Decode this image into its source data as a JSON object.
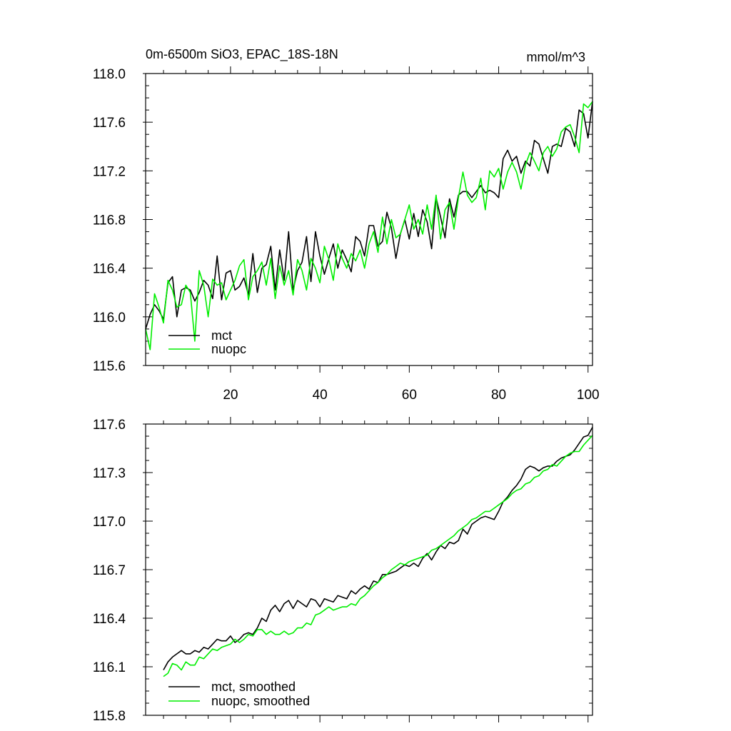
{
  "chart_data": [
    {
      "type": "line",
      "title": "0m-6500m SiO3, EPAC_18S-18N",
      "units": "mmol/m^3",
      "xlabel": "",
      "ylabel": "",
      "xlim": [
        1,
        101
      ],
      "ylim": [
        115.6,
        118.0
      ],
      "xticks": [
        20,
        40,
        60,
        80,
        100
      ],
      "xtick_labels": [
        "20",
        "40",
        "60",
        "80",
        "100"
      ],
      "yticks": [
        115.6,
        116.0,
        116.4,
        116.8,
        117.2,
        117.6,
        118.0
      ],
      "ytick_labels": [
        "115.6",
        "116.0",
        "116.4",
        "116.8",
        "117.2",
        "117.6",
        "118.0"
      ],
      "grid": false,
      "legend": "bottom-left",
      "series": [
        {
          "name": "mct",
          "color": "#000000",
          "x_start": 1,
          "values": [
            115.9,
            116.02,
            116.1,
            116.05,
            115.98,
            116.28,
            116.33,
            116.0,
            116.22,
            116.24,
            116.22,
            116.13,
            116.2,
            116.3,
            116.26,
            116.15,
            116.5,
            116.14,
            116.36,
            116.38,
            116.22,
            116.25,
            116.32,
            116.18,
            116.52,
            116.2,
            116.4,
            116.43,
            116.58,
            116.22,
            116.55,
            116.3,
            116.7,
            116.22,
            116.38,
            116.45,
            116.66,
            116.29,
            116.7,
            116.5,
            116.35,
            116.48,
            116.6,
            116.4,
            116.55,
            116.47,
            116.37,
            116.66,
            116.62,
            116.5,
            116.75,
            116.75,
            116.58,
            116.62,
            116.86,
            116.73,
            116.48,
            116.68,
            116.8,
            116.64,
            116.85,
            116.66,
            116.88,
            116.78,
            116.56,
            116.98,
            116.82,
            116.65,
            116.97,
            116.82,
            117.0,
            117.03,
            117.03,
            116.98,
            117.03,
            117.08,
            117.02,
            117.04,
            117.02,
            116.98,
            117.3,
            117.37,
            117.28,
            117.32,
            117.18,
            117.28,
            117.24,
            117.45,
            117.42,
            117.3,
            117.18,
            117.4,
            117.42,
            117.4,
            117.55,
            117.52,
            117.4,
            117.7,
            117.67,
            117.47,
            117.77
          ]
        },
        {
          "name": "nuopc",
          "color": "#00ee00",
          "x_start": 1,
          "values": [
            115.9,
            115.73,
            116.19,
            116.08,
            115.95,
            116.3,
            116.22,
            116.08,
            116.1,
            116.26,
            116.2,
            115.8,
            116.38,
            116.26,
            116.0,
            116.31,
            116.26,
            116.28,
            116.14,
            116.22,
            116.3,
            116.42,
            116.47,
            116.14,
            116.33,
            116.38,
            116.45,
            116.26,
            116.48,
            116.15,
            116.42,
            116.26,
            116.38,
            116.18,
            116.47,
            116.38,
            116.22,
            116.48,
            116.4,
            116.28,
            116.58,
            116.47,
            116.3,
            116.6,
            116.48,
            116.4,
            116.52,
            116.46,
            116.55,
            116.4,
            116.6,
            116.7,
            116.53,
            116.82,
            116.6,
            116.8,
            116.65,
            116.68,
            116.8,
            116.92,
            116.72,
            116.8,
            116.68,
            116.92,
            116.72,
            117.0,
            116.64,
            116.88,
            116.94,
            116.72,
            116.98,
            117.19,
            117.0,
            116.94,
            116.98,
            117.14,
            116.88,
            117.2,
            117.15,
            117.22,
            117.05,
            117.19,
            117.27,
            117.19,
            117.05,
            117.25,
            117.35,
            117.28,
            117.2,
            117.35,
            117.4,
            117.32,
            117.38,
            117.52,
            117.56,
            117.58,
            117.48,
            117.35,
            117.75,
            117.72,
            117.77
          ]
        }
      ]
    },
    {
      "type": "line",
      "title": "",
      "xlabel": "",
      "ylabel": "",
      "xlim": [
        1,
        101
      ],
      "ylim": [
        115.8,
        117.6
      ],
      "xticks": [
        20,
        40,
        60,
        80,
        100
      ],
      "xtick_labels": [],
      "yticks": [
        115.8,
        116.1,
        116.4,
        116.7,
        117.0,
        117.3,
        117.6
      ],
      "ytick_labels": [
        "115.8",
        "116.1",
        "116.4",
        "116.7",
        "117.0",
        "117.3",
        "117.6"
      ],
      "grid": false,
      "legend": "bottom-left",
      "series": [
        {
          "name": "mct, smoothed",
          "color": "#000000",
          "x_start": 5,
          "values": [
            116.08,
            116.13,
            116.16,
            116.18,
            116.2,
            116.18,
            116.18,
            116.2,
            116.19,
            116.22,
            116.21,
            116.24,
            116.27,
            116.26,
            116.26,
            116.29,
            116.25,
            116.27,
            116.3,
            116.31,
            116.3,
            116.34,
            116.4,
            116.38,
            116.45,
            116.48,
            116.44,
            116.49,
            116.51,
            116.46,
            116.51,
            116.49,
            116.47,
            116.52,
            116.51,
            116.47,
            116.52,
            116.51,
            116.5,
            116.54,
            116.53,
            116.52,
            116.57,
            116.55,
            116.58,
            116.6,
            116.58,
            116.63,
            116.62,
            116.67,
            116.67,
            116.68,
            116.69,
            116.71,
            116.73,
            116.72,
            116.74,
            116.72,
            116.77,
            116.8,
            116.76,
            116.81,
            116.85,
            116.83,
            116.87,
            116.86,
            116.88,
            116.95,
            116.92,
            116.98,
            117.0,
            117.02,
            117.03,
            117.02,
            117.01,
            117.06,
            117.12,
            117.15,
            117.19,
            117.22,
            117.26,
            117.32,
            117.34,
            117.33,
            117.31,
            117.33,
            117.34,
            117.34,
            117.37,
            117.39,
            117.4,
            117.41,
            117.44,
            117.48,
            117.52,
            117.53,
            117.58
          ]
        },
        {
          "name": "nuopc, smoothed",
          "color": "#00ee00",
          "x_start": 5,
          "values": [
            116.04,
            116.06,
            116.12,
            116.11,
            116.08,
            116.13,
            116.11,
            116.11,
            116.16,
            116.15,
            116.18,
            116.21,
            116.2,
            116.22,
            116.23,
            116.24,
            116.27,
            116.25,
            116.27,
            116.3,
            116.29,
            116.33,
            116.33,
            116.3,
            116.32,
            116.3,
            116.3,
            116.32,
            116.3,
            116.31,
            116.34,
            116.34,
            116.37,
            116.36,
            116.42,
            116.43,
            116.45,
            116.47,
            116.45,
            116.46,
            116.47,
            116.47,
            116.49,
            116.48,
            116.52,
            116.54,
            116.57,
            116.6,
            116.62,
            116.65,
            116.67,
            116.7,
            116.72,
            116.74,
            116.73,
            116.75,
            116.76,
            116.77,
            116.78,
            116.79,
            116.82,
            116.83,
            116.85,
            116.87,
            116.89,
            116.91,
            116.94,
            116.96,
            116.98,
            117.01,
            117.02,
            117.04,
            117.06,
            117.06,
            117.08,
            117.1,
            117.12,
            117.14,
            117.17,
            117.19,
            117.2,
            117.23,
            117.24,
            117.27,
            117.28,
            117.31,
            117.32,
            117.35,
            117.34,
            117.37,
            117.4,
            117.42,
            117.43,
            117.43,
            117.47,
            117.5,
            117.53
          ]
        }
      ]
    }
  ]
}
